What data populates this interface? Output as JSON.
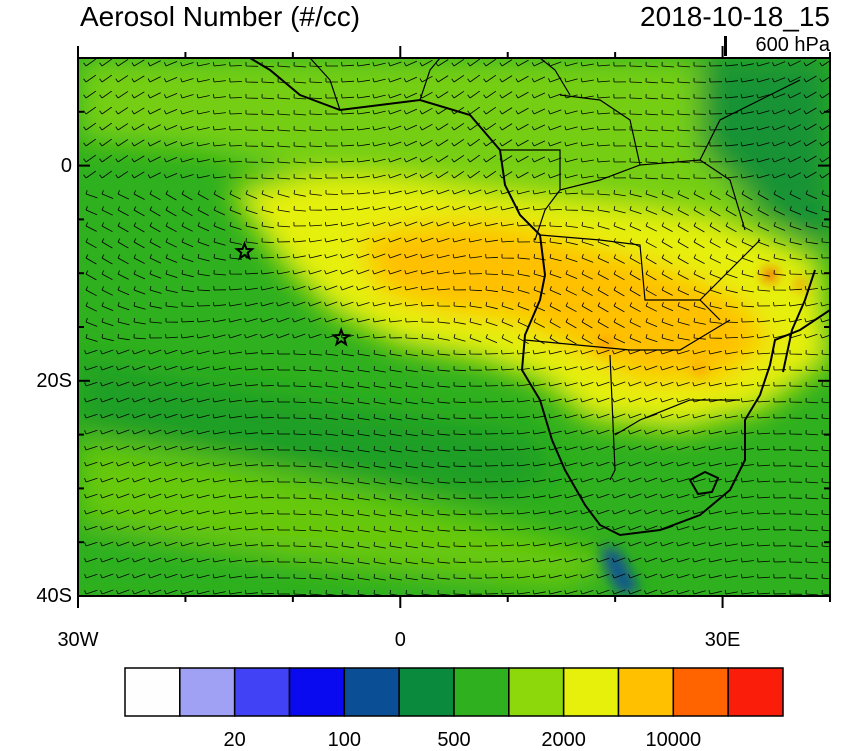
{
  "header": {
    "title": "Aerosol Number (#/cc)",
    "datetime": "2018-10-18_15",
    "level": "600 hPa"
  },
  "axes": {
    "lat_ticks": [
      {
        "value": 0,
        "label": "0"
      },
      {
        "value": -20,
        "label": "20S"
      },
      {
        "value": -40,
        "label": "40S"
      }
    ],
    "lon_ticks": [
      {
        "value": -30,
        "label": "30W"
      },
      {
        "value": 0,
        "label": "0"
      },
      {
        "value": 30,
        "label": "30E"
      }
    ],
    "lon_range": [
      -30,
      40
    ],
    "lat_range": [
      -40,
      10
    ]
  },
  "colorbar": {
    "colors": [
      "#fefefe",
      "#a0a0f5",
      "#4141f5",
      "#0a0af0",
      "#0a4f96",
      "#0a8a3c",
      "#2fb01e",
      "#8cd80a",
      "#e6f00a",
      "#ffc000",
      "#ff6400",
      "#fa1e0a"
    ],
    "labels": [
      {
        "index": 2,
        "text": "20"
      },
      {
        "index": 4,
        "text": "100"
      },
      {
        "index": 6,
        "text": "500"
      },
      {
        "index": 8,
        "text": "2000"
      },
      {
        "index": 10,
        "text": "10000"
      }
    ]
  },
  "markers": [
    {
      "name": "star-1",
      "lon": -14.5,
      "lat": -8
    },
    {
      "name": "star-2",
      "lon": -5.5,
      "lat": -16
    }
  ]
}
